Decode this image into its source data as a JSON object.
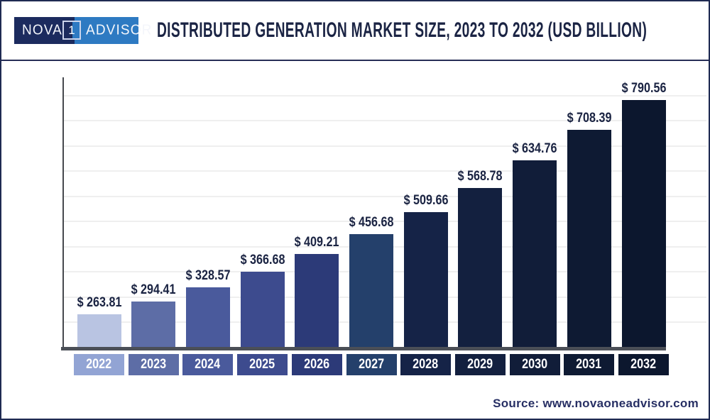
{
  "header": {
    "logo": {
      "part1": "NOVA",
      "boxed": "1",
      "part2": "ADVISOR"
    },
    "title": "DISTRIBUTED GENERATION MARKET SIZE, 2023 TO 2032 (USD BILLION)"
  },
  "source": {
    "label": "Source: www.novaoneadvisor.com"
  },
  "colors": {
    "brand_navy": "#1c2b5e",
    "brand_blue": "#2e7ac2",
    "title_text": "#1b2444",
    "value_label_text": "#1a2342",
    "axis_line": "#4b4f57",
    "gridline": "#efefef",
    "frame_border": "#1f2a52",
    "year_label_text": "#ffffff"
  },
  "chart_data": {
    "type": "bar",
    "title": "Distributed Generation Market Size, 2023 to 2032 (USD Billion)",
    "unit": "USD Billion",
    "categories": [
      "2022",
      "2023",
      "2024",
      "2025",
      "2026",
      "2027",
      "2028",
      "2029",
      "2030",
      "2031",
      "2032"
    ],
    "values": [
      263.81,
      294.41,
      328.57,
      366.68,
      409.21,
      456.68,
      509.66,
      568.78,
      634.76,
      708.39,
      790.56
    ],
    "display_values": [
      "$ 263.81",
      "$ 294.41",
      "$ 328.57",
      "$ 366.68",
      "$ 409.21",
      "$ 456.68",
      "$ 509.66",
      "$ 568.78",
      "$ 634.76",
      "$ 708.39",
      "$ 790.56"
    ],
    "value_prefix": "$ ",
    "bar_colors": [
      "#b9c4e2",
      "#5d6da6",
      "#4a5a9c",
      "#3d4b8e",
      "#2c3a78",
      "#24406b",
      "#152347",
      "#13203f",
      "#111d39",
      "#0e1a33",
      "#0c172e"
    ],
    "year_box_colors": [
      "#92a4d4",
      "#5d6da6",
      "#4a5a9c",
      "#3d4b8e",
      "#2c3a78",
      "#24406b",
      "#152347",
      "#13203f",
      "#111d39",
      "#0e1a33",
      "#0c172e"
    ],
    "grid": true,
    "legend": false,
    "data_labels": "above bars",
    "x_axis": "years",
    "y_axis_ticks_visible": false
  }
}
